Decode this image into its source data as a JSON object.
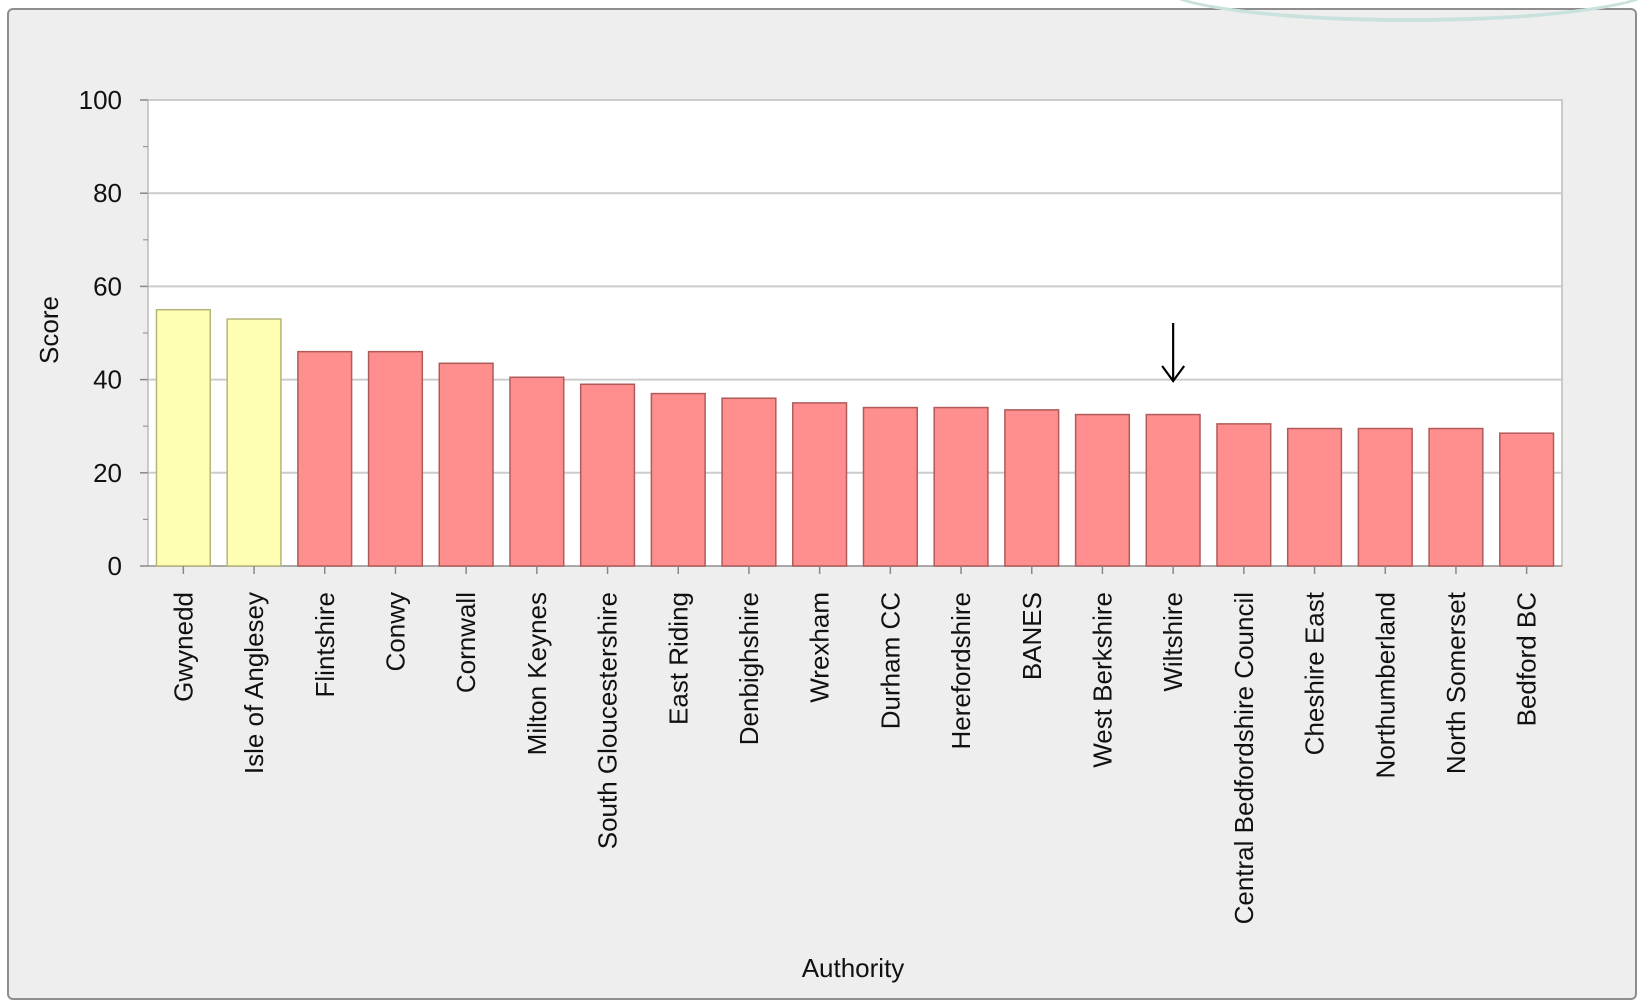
{
  "chart_data": {
    "type": "bar",
    "title": "",
    "xlabel": "Authority",
    "ylabel": "Score",
    "ylim": [
      0,
      100
    ],
    "yticks": [
      0,
      20,
      40,
      60,
      80,
      100
    ],
    "grid": true,
    "categories": [
      "Gwynedd",
      "Isle of Anglesey",
      "Flintshire",
      "Conwy",
      "Cornwall",
      "Milton Keynes",
      "South Gloucestershire",
      "East Riding",
      "Denbighshire",
      "Wrexham",
      "Durham CC",
      "Herefordshire",
      "BANES",
      "West Berkshire",
      "Wiltshire",
      "Central Bedfordshire Council",
      "Cheshire East",
      "Northumberland",
      "North Somerset",
      "Bedford BC"
    ],
    "values": [
      55,
      53,
      46,
      46,
      43.5,
      40.5,
      39,
      37,
      36,
      35,
      34,
      34,
      33.5,
      32.5,
      32.5,
      30.5,
      29.5,
      29.5,
      29.5,
      28.5
    ],
    "bar_colors": [
      "#ffffb3",
      "#ffffb3",
      "#ff8f8f",
      "#ff8f8f",
      "#ff8f8f",
      "#ff8f8f",
      "#ff8f8f",
      "#ff8f8f",
      "#ff8f8f",
      "#ff8f8f",
      "#ff8f8f",
      "#ff8f8f",
      "#ff8f8f",
      "#ff8f8f",
      "#ff8f8f",
      "#ff8f8f",
      "#ff8f8f",
      "#ff8f8f",
      "#ff8f8f",
      "#ff8f8f"
    ],
    "highlight_category": "Wiltshire",
    "annotation": "down-arrow-icon"
  },
  "colors": {
    "panel_bg": "#eeeeee",
    "plot_bg": "#ffffff",
    "grid": "#cccccc",
    "yellow_bar": "#ffffb3",
    "yellow_edge": "#b5b57a",
    "red_bar": "#ff8f8f",
    "red_edge": "#b05a5a"
  }
}
